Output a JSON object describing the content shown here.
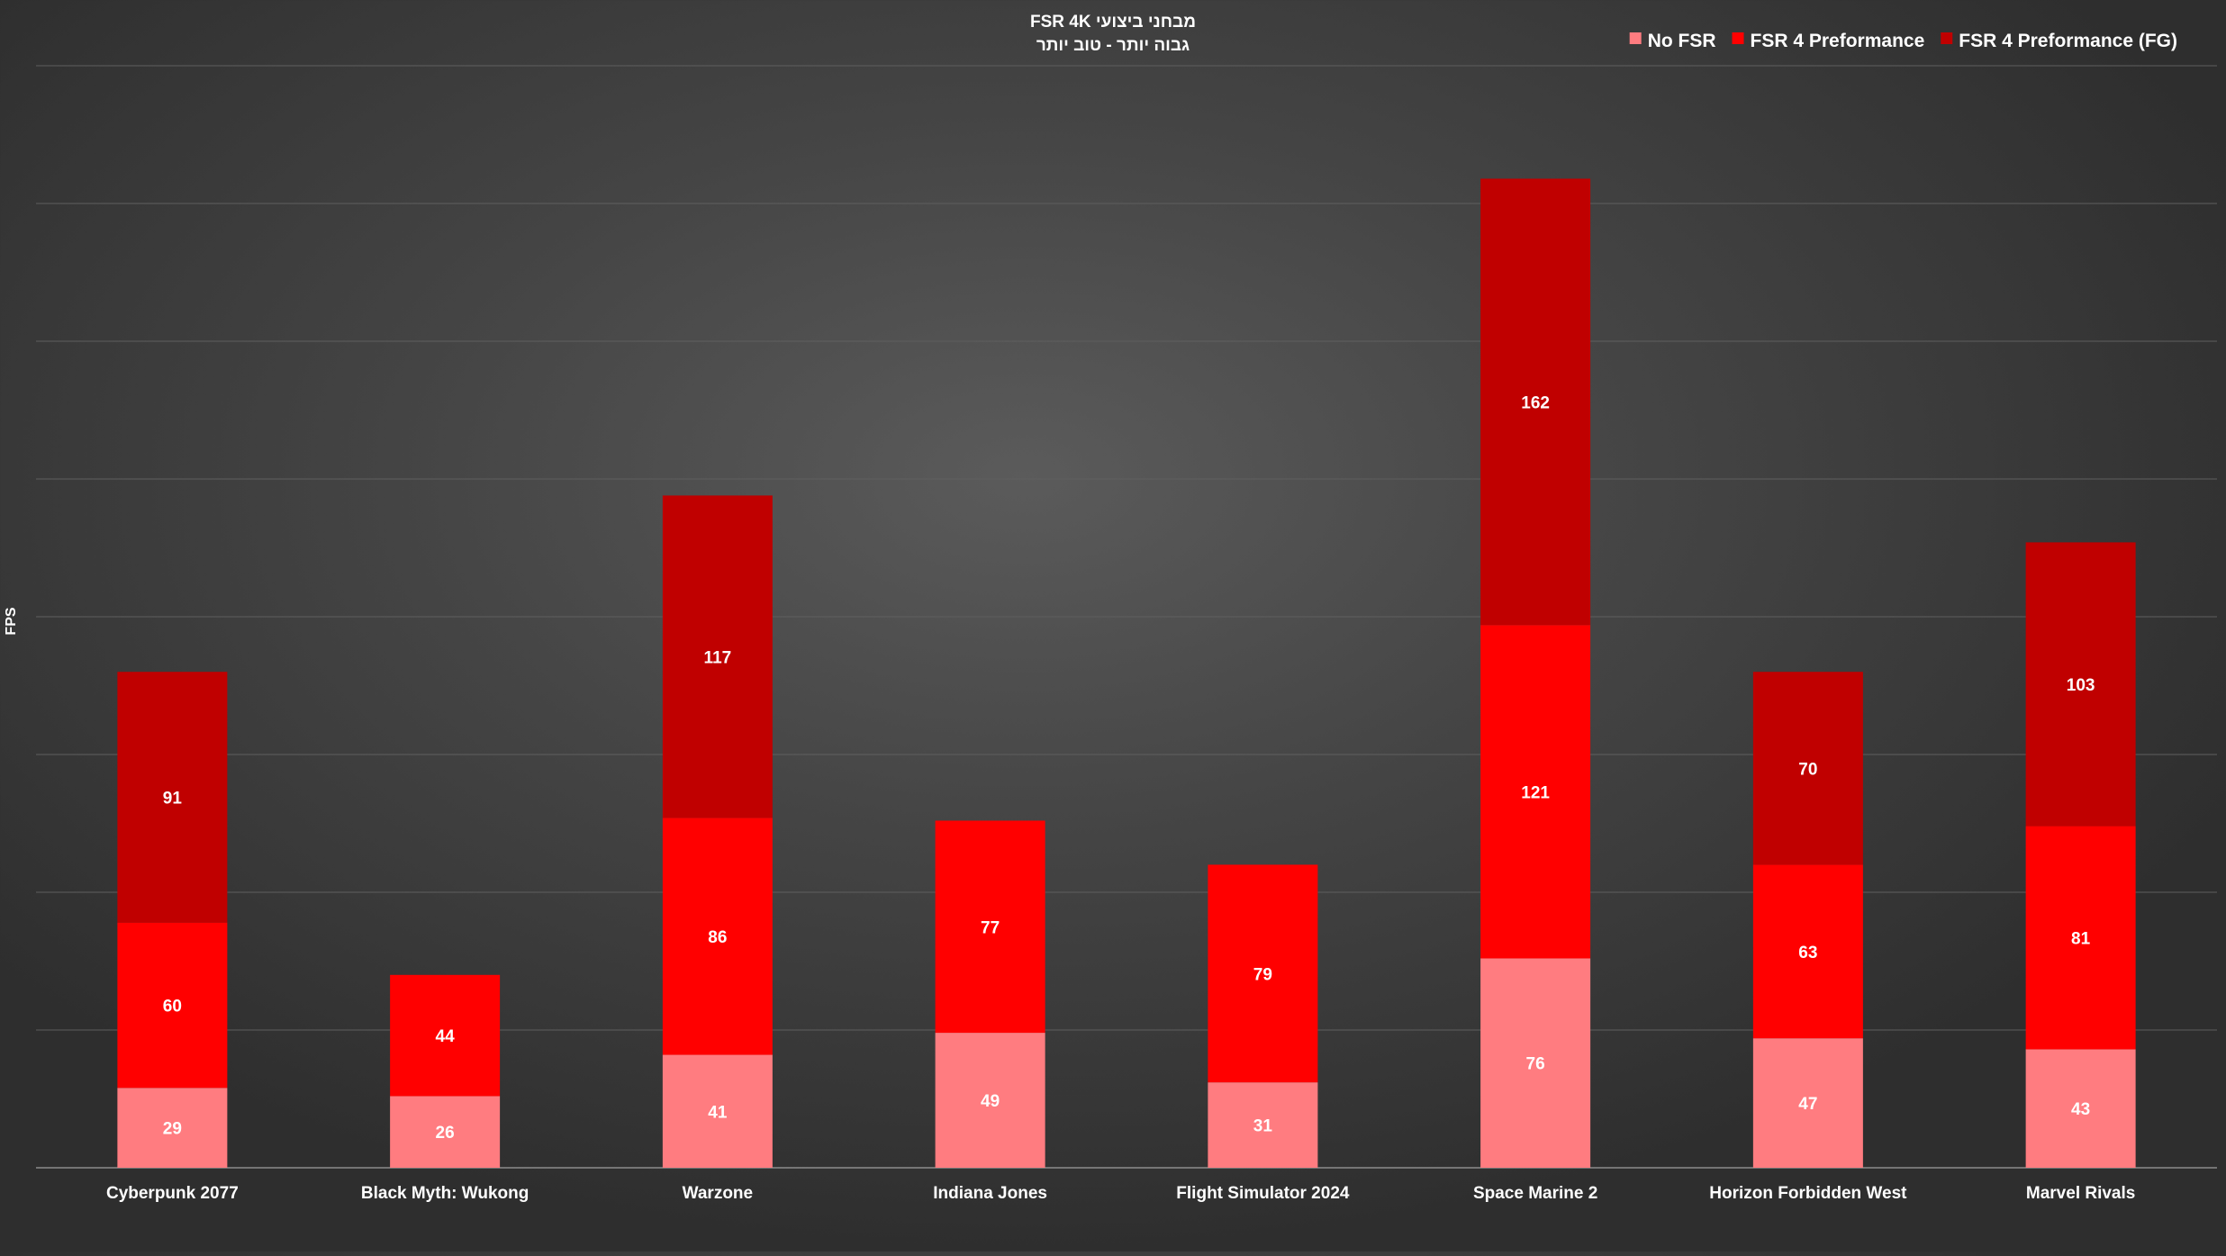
{
  "chart_data": {
    "type": "bar",
    "stacked": true,
    "title": "מבחני ביצועי FSR 4K",
    "subtitle": "גבוה יותר - טוב יותר",
    "xlabel": "",
    "ylabel": "FPS",
    "ylim": [
      0,
      400
    ],
    "grid": true,
    "legend_position": "top-right",
    "categories": [
      "Cyberpunk 2077",
      "Black Myth: Wukong",
      "Warzone",
      "Indiana Jones",
      "Flight Simulator 2024",
      "Space Marine 2",
      "Horizon Forbidden West",
      "Marvel Rivals"
    ],
    "series": [
      {
        "name": "No FSR",
        "color": "#ff7c80",
        "values": [
          29,
          26,
          41,
          49,
          31,
          76,
          47,
          43
        ]
      },
      {
        "name": "FSR 4 Preformance",
        "color": "#ff0000",
        "values": [
          60,
          44,
          86,
          77,
          79,
          121,
          63,
          81
        ]
      },
      {
        "name": "FSR 4 Preformance (FG)",
        "color": "#c00000",
        "values": [
          91,
          null,
          117,
          null,
          null,
          162,
          70,
          103
        ]
      }
    ]
  }
}
